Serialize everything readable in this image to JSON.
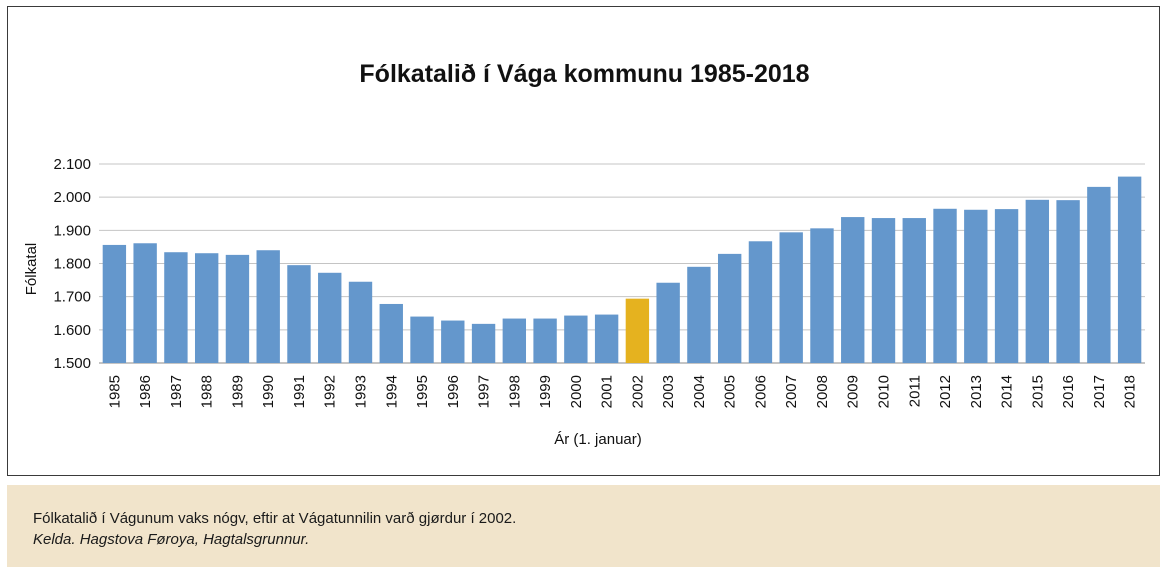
{
  "chart_data": {
    "type": "bar",
    "title": "Fólkatalið í Vága kommunu 1985-2018",
    "xlabel": "Ár (1. januar)",
    "ylabel": "Fólkatal",
    "ylim": [
      1500,
      2100
    ],
    "yticks": [
      1500,
      1600,
      1700,
      1800,
      1900,
      2000,
      2100
    ],
    "ytick_labels": [
      "1.500",
      "1.600",
      "1.700",
      "1.800",
      "1.900",
      "2.000",
      "2.100"
    ],
    "grid": true,
    "legend": "none",
    "bar_color": "#6497cc",
    "highlight_color": "#e5b21f",
    "highlight_category": "2002",
    "categories": [
      "1985",
      "1986",
      "1987",
      "1988",
      "1989",
      "1990",
      "1991",
      "1992",
      "1993",
      "1994",
      "1995",
      "1996",
      "1997",
      "1998",
      "1999",
      "2000",
      "2001",
      "2002",
      "2003",
      "2004",
      "2005",
      "2006",
      "2007",
      "2008",
      "2009",
      "2010",
      "2011",
      "2012",
      "2013",
      "2014",
      "2015",
      "2016",
      "2017",
      "2018"
    ],
    "values": [
      1856,
      1861,
      1834,
      1831,
      1826,
      1840,
      1795,
      1772,
      1745,
      1678,
      1640,
      1628,
      1618,
      1634,
      1634,
      1643,
      1646,
      1694,
      1742,
      1790,
      1829,
      1867,
      1894,
      1906,
      1940,
      1937,
      1937,
      1965,
      1962,
      1964,
      1992,
      1991,
      2031,
      2062
    ]
  },
  "caption": {
    "text": "Fólkatalið í Vágunum vaks nógv, eftir at Vágatunnilin varð gjørdur í 2002.",
    "source": "Kelda. Hagstova Føroya, Hagtalsgrunnur."
  }
}
